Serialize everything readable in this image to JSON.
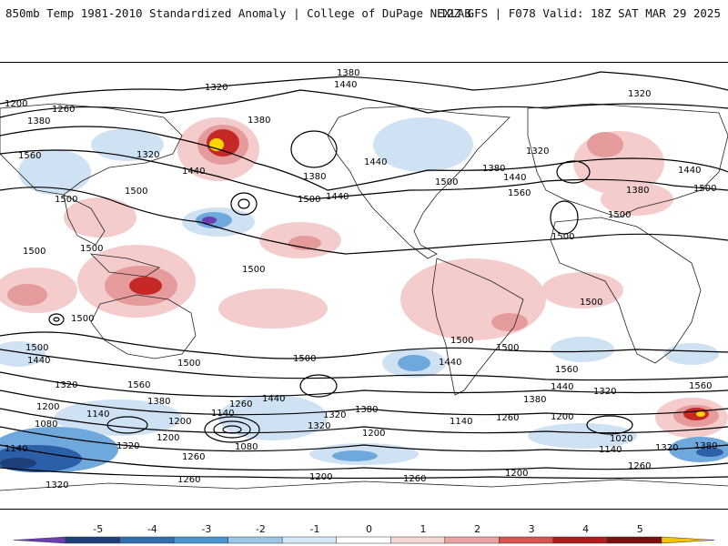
{
  "header": {
    "left_text": "850mb Temp 1981-2010 Standardized Anomaly | College of DuPage NEXLAB",
    "right_text": "12Z GFS | F078 Valid: 18Z SAT MAR 29 2025"
  },
  "colorbar": {
    "ticks": [
      "-5",
      "-4",
      "-3",
      "-2",
      "-1",
      "0",
      "1",
      "2",
      "3",
      "4",
      "5"
    ],
    "colors": [
      "#6a3fb5",
      "#1f3f7a",
      "#2f6fb0",
      "#4a94d0",
      "#9cc6e8",
      "#d7e9f7",
      "#ffffff",
      "#f6d5d5",
      "#e9a3a3",
      "#d9534f",
      "#b01b1b",
      "#7a0f0f",
      "#f5c400"
    ]
  },
  "contour_labels": [
    "1320",
    "1260",
    "1200",
    "1380",
    "1440",
    "1500",
    "1560",
    "1140",
    "1080",
    "1020"
  ],
  "map": {
    "palette": {
      "warm_light": "#f4cccc",
      "warm_mid": "#e59b9b",
      "warm_strong": "#c62828",
      "warm_extreme": "#7a0f0f",
      "cold_light": "#cfe2f3",
      "cold_mid": "#6fa8dc",
      "cold_strong": "#2b5fa8",
      "yellow": "#ffd400",
      "purple": "#6a3fb5"
    }
  }
}
